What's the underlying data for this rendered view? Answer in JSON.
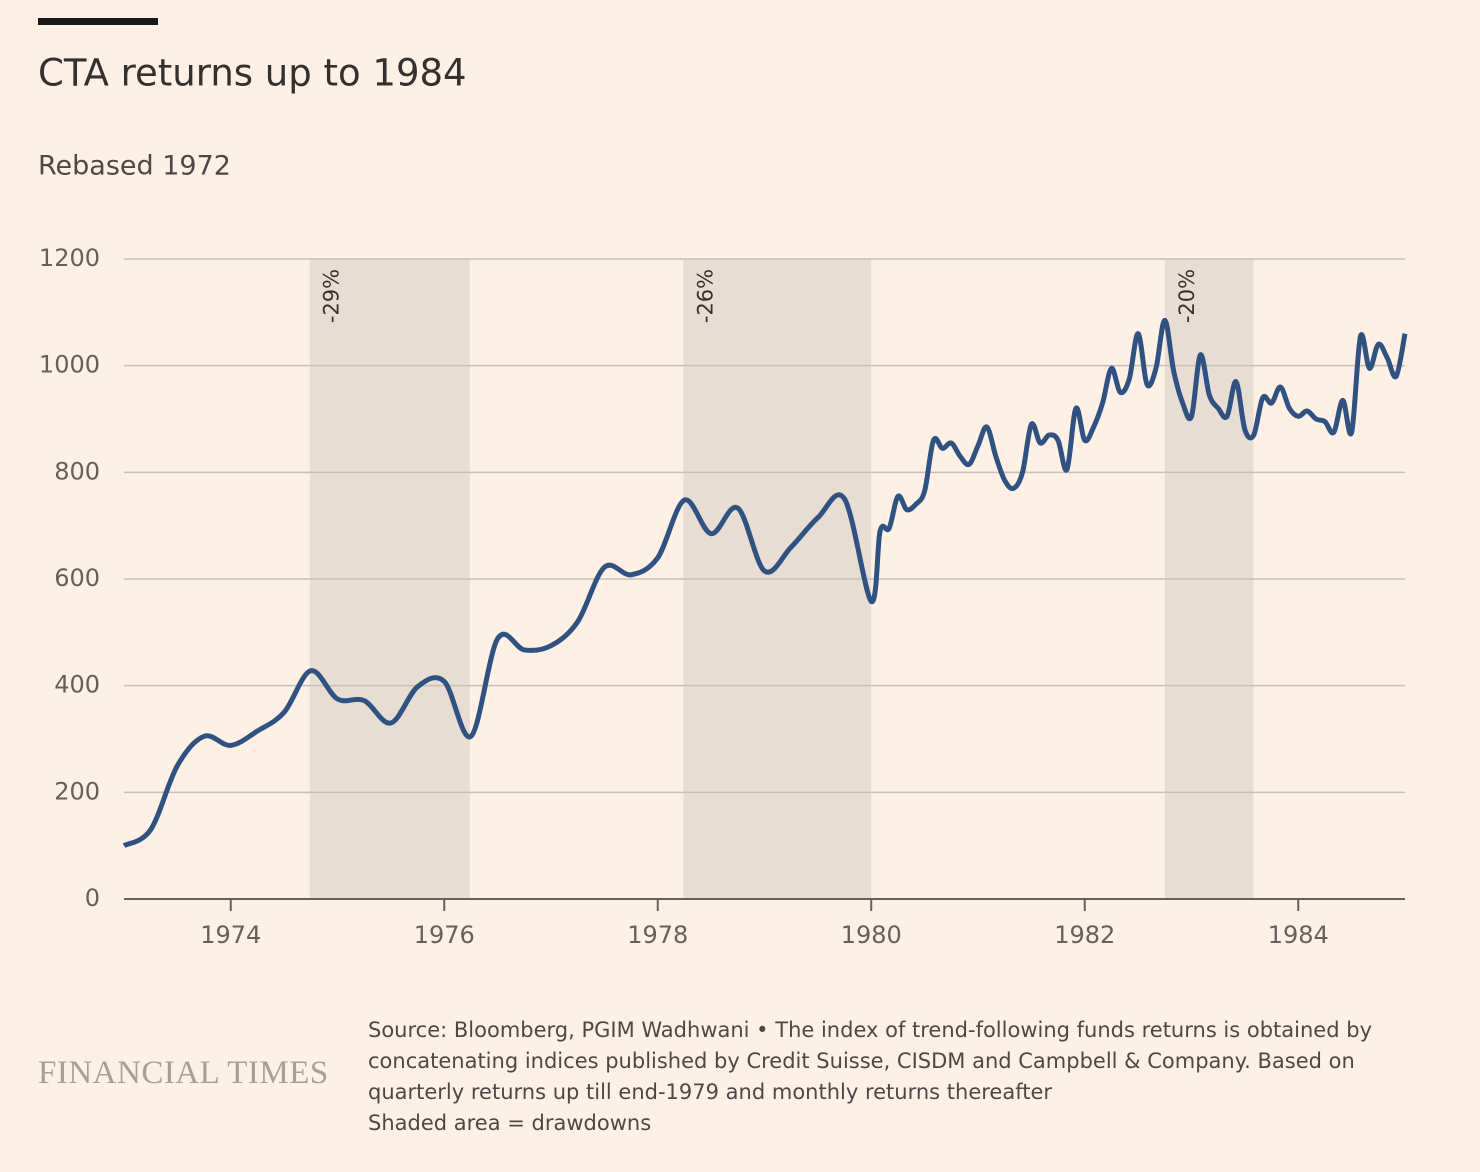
{
  "chart_data": {
    "type": "line",
    "title": "CTA returns up to 1984",
    "subtitle": "Rebased 1972",
    "x": [
      1973,
      1973.25,
      1973.5,
      1973.75,
      1974,
      1974.25,
      1974.5,
      1974.75,
      1975,
      1975.25,
      1975.5,
      1975.75,
      1976,
      1976.25,
      1976.5,
      1976.75,
      1977,
      1977.25,
      1977.5,
      1977.75,
      1978,
      1978.25,
      1978.5,
      1978.75,
      1979,
      1979.25,
      1979.5,
      1979.75,
      1980,
      1980.083,
      1980.167,
      1980.25,
      1980.333,
      1980.417,
      1980.5,
      1980.583,
      1980.667,
      1980.75,
      1980.833,
      1980.917,
      1981,
      1981.083,
      1981.167,
      1981.25,
      1981.333,
      1981.417,
      1981.5,
      1981.583,
      1981.667,
      1981.75,
      1981.833,
      1981.917,
      1982,
      1982.083,
      1982.167,
      1982.25,
      1982.333,
      1982.417,
      1982.5,
      1982.583,
      1982.667,
      1982.75,
      1982.833,
      1982.917,
      1983,
      1983.083,
      1983.167,
      1983.25,
      1983.333,
      1983.417,
      1983.5,
      1983.583,
      1983.667,
      1983.75,
      1983.833,
      1983.917,
      1984,
      1984.083,
      1984.167,
      1984.25,
      1984.333,
      1984.417,
      1984.5,
      1984.583,
      1984.667,
      1984.75,
      1984.833,
      1984.917,
      1985
    ],
    "series": [
      {
        "color": "#2f5285",
        "values": [
          100,
          130,
          250,
          305,
          288,
          315,
          350,
          428,
          375,
          372,
          330,
          398,
          408,
          305,
          488,
          467,
          475,
          520,
          622,
          608,
          640,
          748,
          685,
          733,
          615,
          660,
          715,
          750,
          558,
          690,
          695,
          755,
          730,
          740,
          765,
          860,
          845,
          855,
          830,
          815,
          850,
          885,
          830,
          785,
          770,
          800,
          890,
          855,
          870,
          860,
          805,
          920,
          860,
          885,
          930,
          995,
          950,
          975,
          1060,
          965,
          995,
          1085,
          990,
          930,
          905,
          1020,
          945,
          920,
          905,
          970,
          880,
          870,
          940,
          930,
          960,
          920,
          905,
          915,
          900,
          895,
          875,
          935,
          875,
          1055,
          995,
          1040,
          1015,
          980,
          1060
        ]
      }
    ],
    "shaded": [
      {
        "start": 1974.74,
        "end": 1976.24,
        "label": "-29%"
      },
      {
        "start": 1978.24,
        "end": 1980.0,
        "label": "-26%"
      },
      {
        "start": 1982.75,
        "end": 1983.58,
        "label": "-20%"
      }
    ],
    "xlim": [
      1973,
      1985
    ],
    "xticks": [
      1974,
      1976,
      1978,
      1980,
      1982,
      1984
    ],
    "ylim": [
      0,
      1200
    ],
    "yticks": [
      0,
      200,
      400,
      600,
      800,
      1000,
      1200
    ],
    "grid": true,
    "source": "Source: Bloomberg, PGIM Wadhwani • The index of trend-following funds returns is obtained by concatenating indices published by Credit Suisse, CISDM and Campbell & Company. Based on quarterly returns up till end-1979 and monthly returns thereafter",
    "note": "Shaded area = drawdowns",
    "brand": "FINANCIAL TIMES"
  }
}
